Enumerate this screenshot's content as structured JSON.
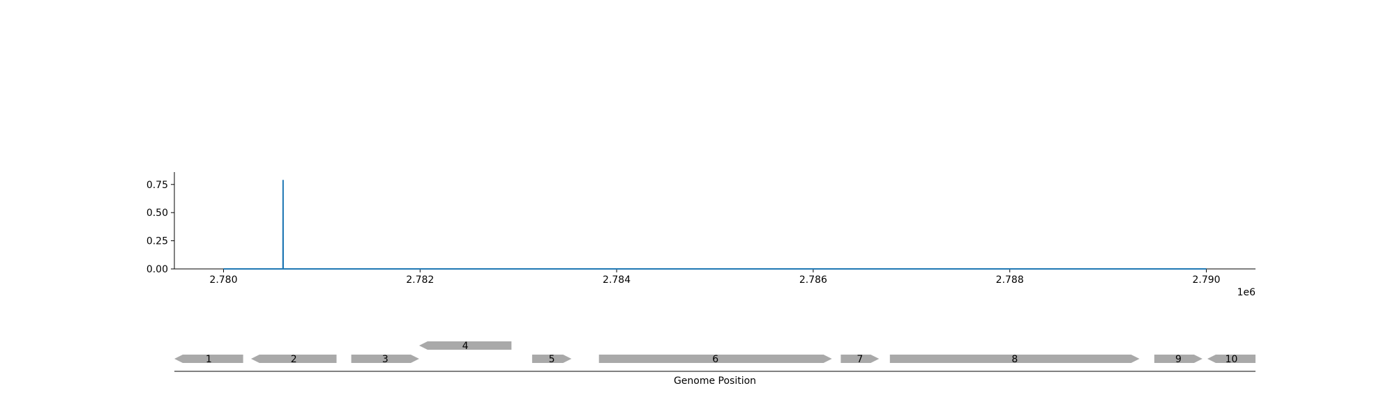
{
  "chart_data": [
    {
      "type": "line",
      "title": "",
      "xlabel": "",
      "ylabel": "",
      "x_offset_label": "1e6",
      "xlim": [
        2779500,
        2790500
      ],
      "ylim": [
        0,
        0.86
      ],
      "x_ticks": [
        2780000,
        2782000,
        2784000,
        2786000,
        2788000,
        2790000
      ],
      "x_tick_labels": [
        "2.780",
        "2.782",
        "2.784",
        "2.786",
        "2.788",
        "2.790"
      ],
      "y_ticks": [
        0,
        0.25,
        0.5,
        0.75
      ],
      "y_tick_labels": [
        "0.00",
        "0.25",
        "0.50",
        "0.75"
      ],
      "grid": false,
      "color": "#1f77b4",
      "series": [
        {
          "x": [
            2780000,
            2780605,
            2780606,
            2780607,
            2790000
          ],
          "y": [
            0,
            0,
            0.79,
            0,
            0
          ]
        }
      ]
    },
    {
      "type": "gene_track",
      "xlabel": "Genome Position",
      "xlim": [
        2779500,
        2790500
      ],
      "color": "#a9a9a9",
      "genes": [
        {
          "label": "1",
          "start": 2779500,
          "end": 2780200,
          "strand": "-",
          "row": 0
        },
        {
          "label": "2",
          "start": 2780280,
          "end": 2781150,
          "strand": "-",
          "row": 0
        },
        {
          "label": "3",
          "start": 2781300,
          "end": 2781990,
          "strand": "+",
          "row": 0
        },
        {
          "label": "4",
          "start": 2781990,
          "end": 2782930,
          "strand": "-",
          "row": 1
        },
        {
          "label": "5",
          "start": 2783140,
          "end": 2783540,
          "strand": "+",
          "row": 0
        },
        {
          "label": "6",
          "start": 2783820,
          "end": 2786190,
          "strand": "+",
          "row": 0
        },
        {
          "label": "7",
          "start": 2786280,
          "end": 2786670,
          "strand": "+",
          "row": 0
        },
        {
          "label": "8",
          "start": 2786780,
          "end": 2789320,
          "strand": "+",
          "row": 0
        },
        {
          "label": "9",
          "start": 2789470,
          "end": 2789960,
          "strand": "+",
          "row": 0
        },
        {
          "label": "10",
          "start": 2790010,
          "end": 2790500,
          "strand": "-",
          "row": 0
        }
      ]
    }
  ]
}
